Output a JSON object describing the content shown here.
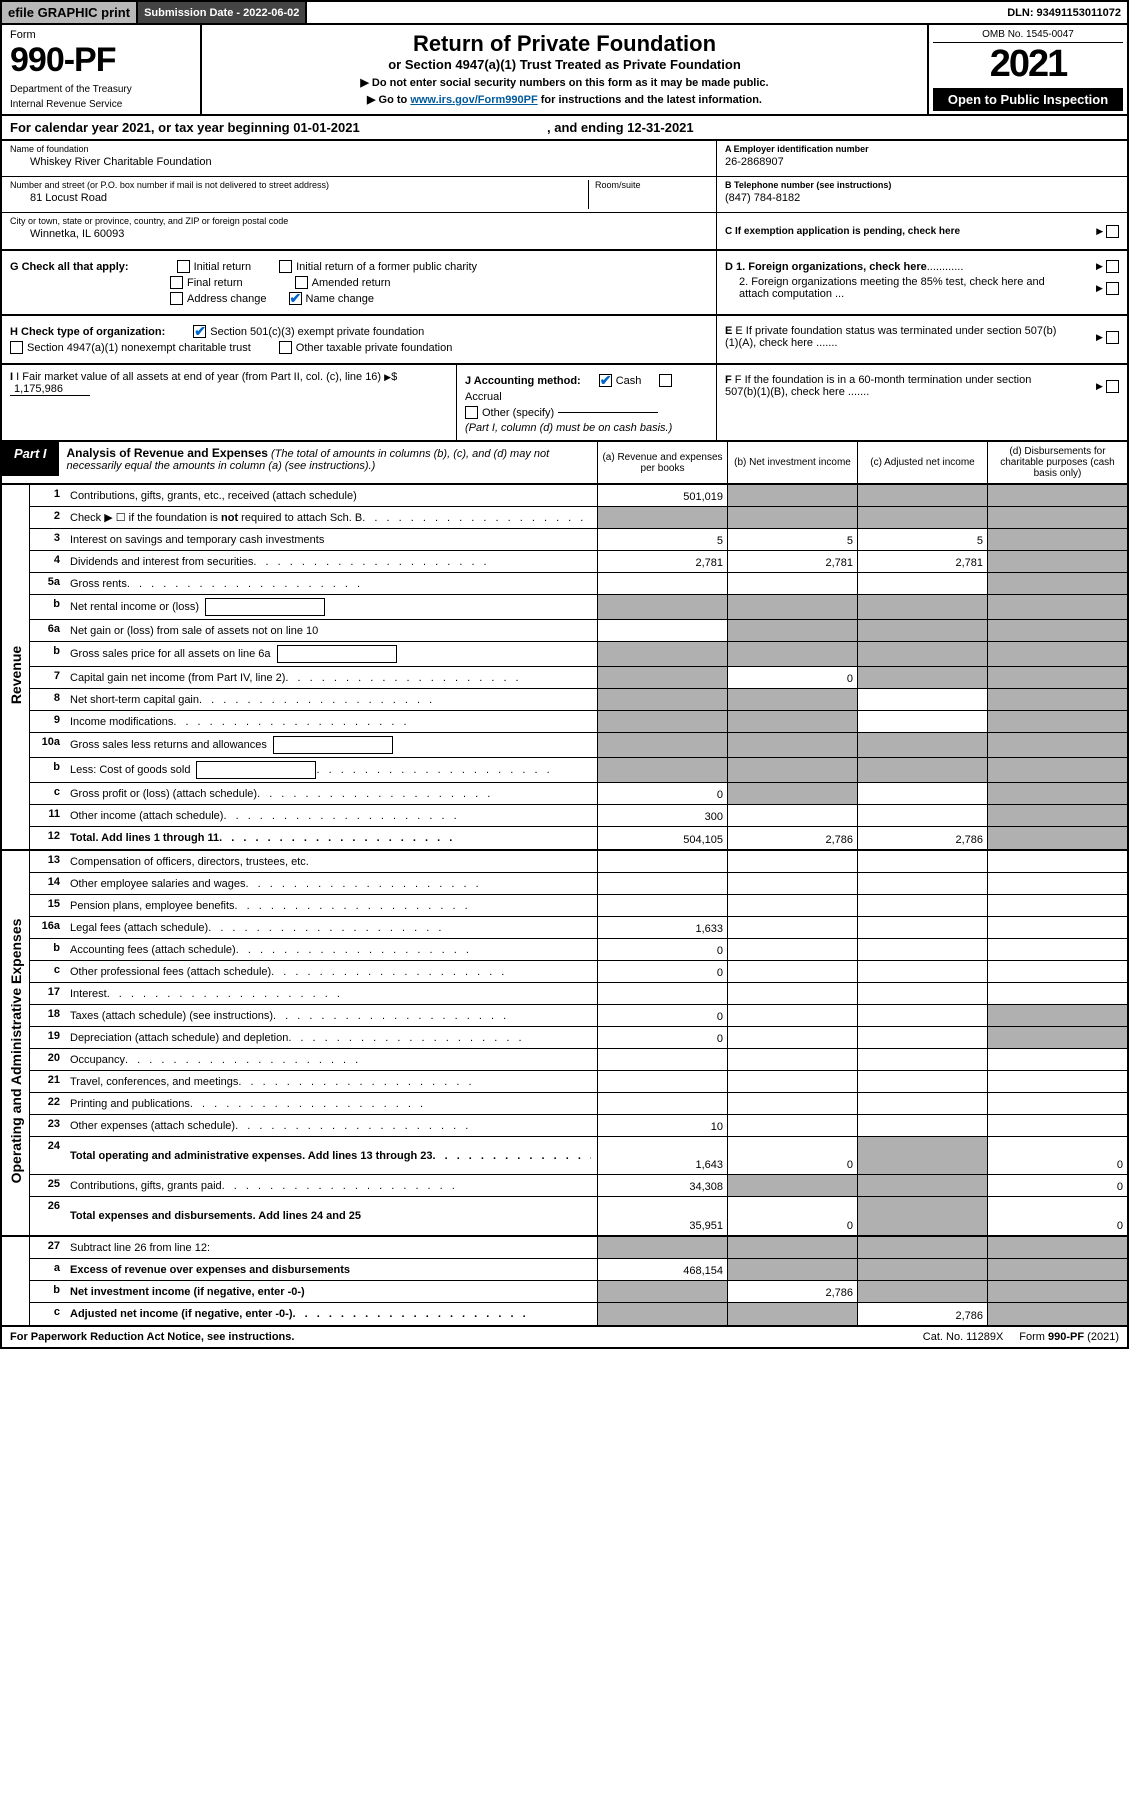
{
  "topbar": {
    "efile": "efile GRAPHIC print",
    "submission_label": "Submission Date - 2022-06-02",
    "dln": "DLN: 93491153011072"
  },
  "header": {
    "form_label": "Form",
    "form_number": "990-PF",
    "dept": "Department of the Treasury",
    "irs": "Internal Revenue Service",
    "title": "Return of Private Foundation",
    "subtitle": "or Section 4947(a)(1) Trust Treated as Private Foundation",
    "instr1": "▶ Do not enter social security numbers on this form as it may be made public.",
    "instr2_pre": "▶ Go to ",
    "instr2_link": "www.irs.gov/Form990PF",
    "instr2_post": " for instructions and the latest information.",
    "omb": "OMB No. 1545-0047",
    "tax_year": "2021",
    "open": "Open to Public Inspection"
  },
  "calendar": "For calendar year 2021, or tax year beginning 01-01-2021",
  "calendar_end": ", and ending 12-31-2021",
  "name_of_foundation_lbl": "Name of foundation",
  "name_of_foundation": "Whiskey River Charitable Foundation",
  "addr_lbl": "Number and street (or P.O. box number if mail is not delivered to street address)",
  "addr": "81 Locust Road",
  "room_lbl": "Room/suite",
  "city_lbl": "City or town, state or province, country, and ZIP or foreign postal code",
  "city": "Winnetka, IL  60093",
  "ein_lbl": "A Employer identification number",
  "ein": "26-2868907",
  "phone_lbl": "B Telephone number (see instructions)",
  "phone": "(847) 784-8182",
  "c_lbl": "C If exemption application is pending, check here",
  "g_label": "G Check all that apply:",
  "g_opts": {
    "initial": "Initial return",
    "initial_former": "Initial return of a former public charity",
    "final": "Final return",
    "amended": "Amended return",
    "addr_change": "Address change",
    "name_change": "Name change"
  },
  "d1": "D 1. Foreign organizations, check here",
  "d2": "2. Foreign organizations meeting the 85% test, check here and attach computation ...",
  "e_lbl": "E  If private foundation status was terminated under section 507(b)(1)(A), check here .......",
  "h_label": "H Check type of organization:",
  "h_501c3": "Section 501(c)(3) exempt private foundation",
  "h_4947": "Section 4947(a)(1) nonexempt charitable trust",
  "h_other_tax": "Other taxable private foundation",
  "i_label": "I Fair market value of all assets at end of year (from Part II, col. (c), line 16)",
  "i_value": "1,175,986",
  "j_label": "J Accounting method:",
  "j_cash": "Cash",
  "j_accrual": "Accrual",
  "j_other": "Other (specify)",
  "j_note": "(Part I, column (d) must be on cash basis.)",
  "f_lbl": "F  If the foundation is in a 60-month termination under section 507(b)(1)(B), check here .......",
  "part1": {
    "label": "Part I",
    "title": "Analysis of Revenue and Expenses",
    "note": "(The total of amounts in columns (b), (c), and (d) may not necessarily equal the amounts in column (a) (see instructions).)",
    "col_a": "(a)   Revenue and expenses per books",
    "col_b": "(b)   Net investment income",
    "col_c": "(c)   Adjusted net income",
    "col_d": "(d)  Disbursements for charitable purposes (cash basis only)"
  },
  "side_labels": {
    "revenue": "Revenue",
    "expenses": "Operating and Administrative Expenses"
  },
  "colors": {
    "shaded": "#b0b0b0",
    "topbar_btn": "#b8b8b8",
    "topbar_dark": "#444444",
    "link": "#005a9c",
    "check": "#0066cc"
  },
  "col_widths": {
    "a": 130,
    "b": 130,
    "c": 130,
    "d": 140
  },
  "rows": [
    {
      "n": "1",
      "desc": "Contributions, gifts, grants, etc., received (attach schedule)",
      "a": "501,019",
      "b_sh": true,
      "c_sh": true,
      "d_sh": true
    },
    {
      "n": "2",
      "desc": "Check ▶ ☐ if the foundation is not required to attach Sch. B",
      "dots": true,
      "a_sh": true,
      "b_sh": true,
      "c_sh": true,
      "d_sh": true,
      "bold_inline": "not"
    },
    {
      "n": "3",
      "desc": "Interest on savings and temporary cash investments",
      "a": "5",
      "b": "5",
      "c": "5",
      "d_sh": true
    },
    {
      "n": "4",
      "desc": "Dividends and interest from securities",
      "dots": true,
      "a": "2,781",
      "b": "2,781",
      "c": "2,781",
      "d_sh": true
    },
    {
      "n": "5a",
      "desc": "Gross rents",
      "dots": true,
      "d_sh": true
    },
    {
      "n": "b",
      "desc": "Net rental income or (loss)",
      "inline_box": true,
      "a_sh": true,
      "b_sh": true,
      "c_sh": true,
      "d_sh": true
    },
    {
      "n": "6a",
      "desc": "Net gain or (loss) from sale of assets not on line 10",
      "b_sh": true,
      "c_sh": true,
      "d_sh": true
    },
    {
      "n": "b",
      "desc": "Gross sales price for all assets on line 6a",
      "inline_box": true,
      "a_sh": true,
      "b_sh": true,
      "c_sh": true,
      "d_sh": true
    },
    {
      "n": "7",
      "desc": "Capital gain net income (from Part IV, line 2)",
      "dots": true,
      "a_sh": true,
      "b": "0",
      "c_sh": true,
      "d_sh": true
    },
    {
      "n": "8",
      "desc": "Net shortड short-term capital gain",
      "dots": true,
      "a_sh": true,
      "b_sh": true,
      "d_sh": true
    },
    {
      "n": "9",
      "desc": "Income modifications",
      "dots": true,
      "a_sh": true,
      "b_sh": true,
      "d_sh": true
    },
    {
      "n": "10a",
      "desc": "Gross sales less returns and allowances",
      "inline_box": true,
      "a_sh": true,
      "b_sh": true,
      "c_sh": true,
      "d_sh": true
    },
    {
      "n": "b",
      "desc": "Less: Cost of goods sold",
      "dots": true,
      "inline_box": true,
      "a_sh": true,
      "b_sh": true,
      "c_sh": true,
      "d_sh": true
    },
    {
      "n": "c",
      "desc": "Gross profit or (loss) (attach schedule)",
      "dots": true,
      "a": "0",
      "b_sh": true,
      "d_sh": true
    },
    {
      "n": "11",
      "desc": "Other income (attach schedule)",
      "dots": true,
      "a": "300",
      "d_sh": true
    },
    {
      "n": "12",
      "desc": "Total. Add lines 1 through 11",
      "dots": true,
      "bold": true,
      "a": "504,105",
      "b": "2,786",
      "c": "2,786",
      "d_sh": true
    }
  ],
  "rows8": {
    "n": "8",
    "desc": "Net short-term capital gain"
  },
  "exp_rows": [
    {
      "n": "13",
      "desc": "Compensation of officers, directors, trustees, etc."
    },
    {
      "n": "14",
      "desc": "Other employee salaries and wages",
      "dots": true
    },
    {
      "n": "15",
      "desc": "Pension plans, employee benefits",
      "dots": true
    },
    {
      "n": "16a",
      "desc": "Legal fees (attach schedule)",
      "dots": true,
      "a": "1,633"
    },
    {
      "n": "b",
      "desc": "Accounting fees (attach schedule)",
      "dots": true,
      "a": "0"
    },
    {
      "n": "c",
      "desc": "Other professional fees (attach schedule)",
      "dots": true,
      "a": "0"
    },
    {
      "n": "17",
      "desc": "Interest",
      "dots": true
    },
    {
      "n": "18",
      "desc": "Taxes (attach schedule) (see instructions)",
      "dots": true,
      "a": "0",
      "d_sh": true
    },
    {
      "n": "19",
      "desc": "Depreciation (attach schedule) and depletion",
      "dots": true,
      "a": "0",
      "d_sh": true
    },
    {
      "n": "20",
      "desc": "Occupancy",
      "dots": true
    },
    {
      "n": "21",
      "desc": "Travel, conferences, and meetings",
      "dots": true
    },
    {
      "n": "22",
      "desc": "Printing and publications",
      "dots": true
    },
    {
      "n": "23",
      "desc": "Other expenses (attach schedule)",
      "dots": true,
      "a": "10"
    },
    {
      "n": "24",
      "desc": "Total operating and administrative expenses. Add lines 13 through 23",
      "dots": true,
      "bold": true,
      "a": "1,643",
      "b": "0",
      "c_sh": true,
      "d": "0",
      "tall": true
    },
    {
      "n": "25",
      "desc": "Contributions, gifts, grants paid",
      "dots": true,
      "a": "34,308",
      "b_sh": true,
      "c_sh": true,
      "d": "0"
    },
    {
      "n": "26",
      "desc": "Total expenses and disbursements. Add lines 24 and 25",
      "bold": true,
      "a": "35,951",
      "b": "0",
      "c_sh": true,
      "d": "0",
      "tall": true
    }
  ],
  "bottom_rows": [
    {
      "n": "27",
      "desc": "Subtract line 26 from line 12:",
      "a_sh": true,
      "b_sh": true,
      "c_sh": true,
      "d_sh": true
    },
    {
      "n": "a",
      "desc": "Excess of revenue over expenses and disbursements",
      "bold": true,
      "a": "468,154",
      "b_sh": true,
      "c_sh": true,
      "d_sh": true
    },
    {
      "n": "b",
      "desc": "Net investment income (if negative, enter -0-)",
      "bold": true,
      "a_sh": true,
      "b": "2,786",
      "c_sh": true,
      "d_sh": true
    },
    {
      "n": "c",
      "desc": "Adjusted net income (if negative, enter -0-)",
      "dots": true,
      "bold": true,
      "a_sh": true,
      "b_sh": true,
      "c": "2,786",
      "d_sh": true
    }
  ],
  "footer": {
    "left": "For Paperwork Reduction Act Notice, see instructions.",
    "mid": "Cat. No. 11289X",
    "right": "Form 990-PF (2021)"
  }
}
